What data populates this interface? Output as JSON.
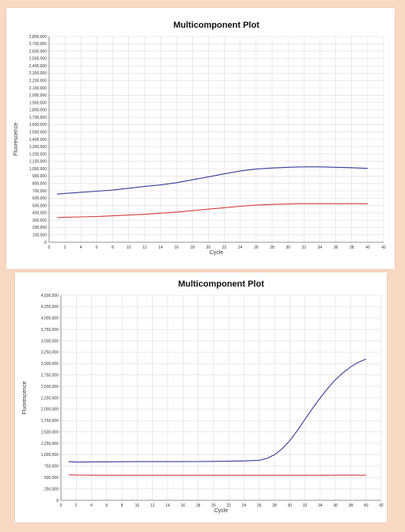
{
  "colors": {
    "background": "#fad9c4",
    "series_blue": "#3b3b9a",
    "series_red": "#d23b3b",
    "grid": "#dcdcdc"
  },
  "chart_data": [
    {
      "type": "line",
      "title": "Multicomponent Plot",
      "xlabel": "Cycle",
      "ylabel": "Fluorescence",
      "xlim": [
        0,
        42
      ],
      "ylim": [
        0,
        2800000
      ],
      "xticks": [
        0,
        2,
        4,
        6,
        8,
        10,
        12,
        14,
        16,
        18,
        20,
        22,
        24,
        26,
        28,
        30,
        32,
        34,
        36,
        38,
        40,
        42
      ],
      "xtick_labels": [
        "0",
        "2",
        "4",
        "6",
        "8",
        "10",
        "12",
        "14",
        "16",
        "18",
        "20",
        "22",
        "24",
        "26",
        "28",
        "30",
        "32",
        "34",
        "36",
        "38",
        "40",
        "42"
      ],
      "yticks": [
        0,
        100000,
        200000,
        300000,
        400000,
        500000,
        600000,
        700000,
        800000,
        900000,
        1000000,
        1100000,
        1200000,
        1300000,
        1400000,
        1500000,
        1600000,
        1700000,
        1800000,
        1900000,
        2000000,
        2100000,
        2200000,
        2300000,
        2400000,
        2500000,
        2600000,
        2700000,
        2800000
      ],
      "ytick_labels": [
        "0",
        "100,000",
        "200,000",
        "300,000",
        "400,000",
        "500,000",
        "600,000",
        "700,000",
        "800,000",
        "900,000",
        "1,000,000",
        "1,100,000",
        "1,200,000",
        "1,300,000",
        "1,400,000",
        "1,500,000",
        "1,600,000",
        "1,700,000",
        "1,800,000",
        "1,900,000",
        "2,000,000",
        "2,100,000",
        "2,200,000",
        "2,300,000",
        "2,400,000",
        "2,500,000",
        "2,600,000",
        "2,700,000",
        "2,800,000"
      ],
      "grid": true,
      "series": [
        {
          "color": "#3b3b9a",
          "x": [
            1,
            2,
            4,
            6,
            8,
            10,
            12,
            14,
            16,
            18,
            20,
            22,
            24,
            26,
            28,
            30,
            32,
            34,
            36,
            38,
            40
          ],
          "y": [
            655000,
            665000,
            680000,
            695000,
            710000,
            735000,
            760000,
            780000,
            810000,
            850000,
            890000,
            930000,
            970000,
            995000,
            1010000,
            1020000,
            1025000,
            1025000,
            1020000,
            1015000,
            1005000
          ]
        },
        {
          "color": "#d23b3b",
          "x": [
            1,
            2,
            4,
            6,
            8,
            10,
            12,
            14,
            16,
            18,
            20,
            22,
            24,
            26,
            28,
            30,
            32,
            34,
            36,
            38,
            40
          ],
          "y": [
            335000,
            340000,
            345000,
            350000,
            360000,
            370000,
            380000,
            395000,
            410000,
            430000,
            450000,
            470000,
            490000,
            505000,
            515000,
            520000,
            525000,
            525000,
            525000,
            525000,
            525000
          ]
        }
      ]
    },
    {
      "type": "line",
      "title": "Multicomponent Plot",
      "xlabel": "Cycle",
      "ylabel": "Fluorescence",
      "xlim": [
        0,
        42
      ],
      "ylim": [
        0,
        4500000
      ],
      "xticks": [
        0,
        2,
        4,
        6,
        8,
        10,
        12,
        14,
        16,
        18,
        20,
        22,
        24,
        26,
        28,
        30,
        32,
        34,
        36,
        38,
        40,
        42
      ],
      "xtick_labels": [
        "0",
        "2",
        "4",
        "6",
        "8",
        "10",
        "12",
        "14",
        "16",
        "18",
        "20",
        "22",
        "24",
        "26",
        "28",
        "30",
        "32",
        "34",
        "36",
        "38",
        "40",
        "42"
      ],
      "yticks": [
        0,
        250000,
        500000,
        750000,
        1000000,
        1250000,
        1500000,
        1750000,
        2000000,
        2250000,
        2500000,
        2750000,
        3000000,
        3250000,
        3500000,
        3750000,
        4000000,
        4250000,
        4500000
      ],
      "ytick_labels": [
        "0",
        "250,000",
        "500,000",
        "750,000",
        "1,000,000",
        "1,250,000",
        "1,500,000",
        "1,750,000",
        "2,000,000",
        "2,250,000",
        "2,500,000",
        "2,750,000",
        "3,000,000",
        "3,250,000",
        "3,500,000",
        "3,750,000",
        "4,000,000",
        "4,250,000",
        "4,500,000"
      ],
      "grid": true,
      "series": [
        {
          "color": "#3b3b9a",
          "x": [
            1,
            2,
            4,
            6,
            8,
            10,
            12,
            14,
            16,
            18,
            20,
            22,
            24,
            26,
            27,
            28,
            29,
            30,
            31,
            32,
            33,
            34,
            35,
            36,
            37,
            38,
            39,
            40
          ],
          "y": [
            850000,
            840000,
            845000,
            845000,
            848000,
            850000,
            850000,
            850000,
            850000,
            852000,
            855000,
            858000,
            865000,
            880000,
            920000,
            1000000,
            1130000,
            1310000,
            1530000,
            1780000,
            2020000,
            2250000,
            2460000,
            2650000,
            2800000,
            2930000,
            3030000,
            3100000
          ]
        },
        {
          "color": "#d23b3b",
          "x": [
            1,
            2,
            4,
            6,
            8,
            10,
            12,
            14,
            16,
            18,
            20,
            22,
            24,
            26,
            28,
            30,
            32,
            34,
            36,
            38,
            40
          ],
          "y": [
            560000,
            555000,
            552000,
            550000,
            550000,
            550000,
            550000,
            550000,
            550000,
            550000,
            550000,
            550000,
            550000,
            550000,
            550000,
            550000,
            550000,
            550000,
            552000,
            552000,
            552000
          ]
        }
      ]
    }
  ]
}
